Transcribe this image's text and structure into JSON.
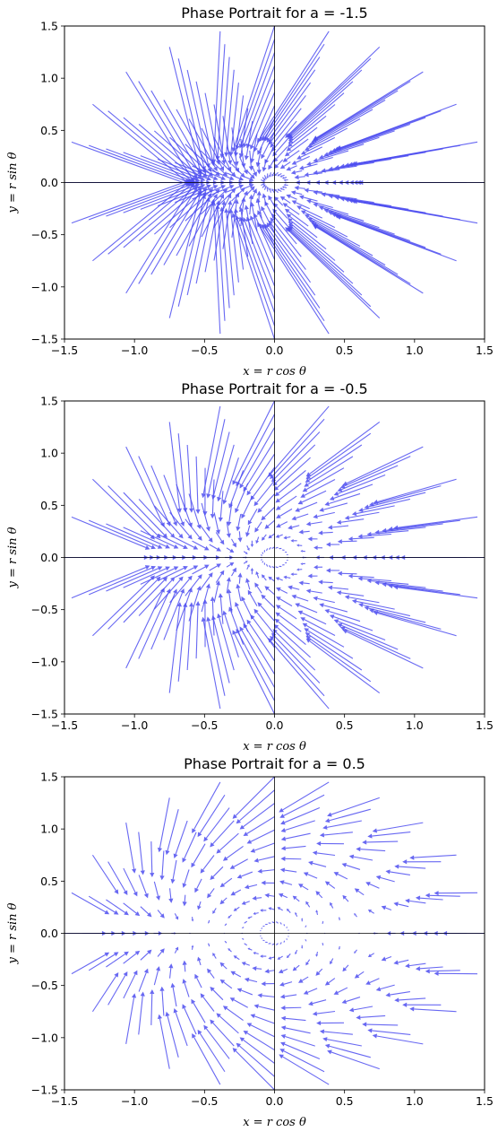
{
  "chart_data": [
    {
      "type": "quiver",
      "title": "Phase Portrait for a = -1.5",
      "a": -1.5,
      "xlabel": "x = r cos θ",
      "ylabel": "y = r sin θ",
      "xlim": [
        -1.5,
        1.5
      ],
      "ylim": [
        -1.5,
        1.5
      ],
      "xticks": [
        "−1.5",
        "−1.0",
        "−0.5",
        "0.0",
        "0.5",
        "1.0",
        "1.5"
      ],
      "yticks": [
        "−1.5",
        "−1.0",
        "−0.5",
        "0.0",
        "0.5",
        "1.0",
        "1.5"
      ],
      "r_range": [
        0.1,
        1.5
      ],
      "n_rays": 24,
      "arrow_color": "#4d4df0",
      "grid": false
    },
    {
      "type": "quiver",
      "title": "Phase Portrait for a = -0.5",
      "a": -0.5,
      "xlabel": "x = r cos θ",
      "ylabel": "y = r sin θ",
      "xlim": [
        -1.5,
        1.5
      ],
      "ylim": [
        -1.5,
        1.5
      ],
      "xticks": [
        "−1.5",
        "−1.0",
        "−0.5",
        "0.0",
        "0.5",
        "1.0",
        "1.5"
      ],
      "yticks": [
        "−1.5",
        "−1.0",
        "−0.5",
        "0.0",
        "0.5",
        "1.0",
        "1.5"
      ],
      "r_range": [
        0.1,
        1.5
      ],
      "n_rays": 24,
      "arrow_color": "#4d4df0",
      "grid": false
    },
    {
      "type": "quiver",
      "title": "Phase Portrait for a = 0.5",
      "a": 0.5,
      "xlabel": "x = r cos θ",
      "ylabel": "y = r sin θ",
      "xlim": [
        -1.5,
        1.5
      ],
      "ylim": [
        -1.5,
        1.5
      ],
      "xticks": [
        "−1.5",
        "−1.0",
        "−0.5",
        "0.0",
        "0.5",
        "1.0",
        "1.5"
      ],
      "yticks": [
        "−1.5",
        "−1.0",
        "−0.5",
        "0.0",
        "0.5",
        "1.0",
        "1.5"
      ],
      "r_range": [
        0.1,
        1.5
      ],
      "n_rays": 24,
      "arrow_color": "#4d4df0",
      "grid": false
    }
  ]
}
